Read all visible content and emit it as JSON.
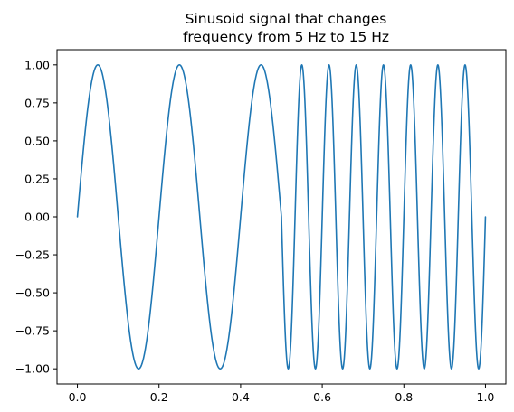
{
  "chart_data": {
    "type": "line",
    "title_lines": [
      "Sinusoid signal that changes",
      "frequency from 5 Hz to 15 Hz"
    ],
    "xlabel": "",
    "ylabel": "",
    "xlim": [
      -0.05,
      1.05
    ],
    "ylim": [
      -1.1,
      1.1
    ],
    "x_ticks": [
      0.0,
      0.2,
      0.4,
      0.6,
      0.8,
      1.0
    ],
    "x_tick_labels": [
      "0.0",
      "0.2",
      "0.4",
      "0.6",
      "0.8",
      "1.0"
    ],
    "y_ticks": [
      1.0,
      0.75,
      0.5,
      0.25,
      0.0,
      -0.25,
      -0.5,
      -0.75,
      -1.0
    ],
    "y_tick_labels": [
      "1.00",
      "0.75",
      "0.50",
      "0.25",
      "0.00",
      "−0.25",
      "−0.50",
      "−0.75",
      "−1.00"
    ],
    "grid": false,
    "series": [
      {
        "color": "#1f77b4",
        "segments": [
          {
            "x_start": 0.0,
            "x_end": 0.5,
            "frequency_hz": 5
          },
          {
            "x_start": 0.5,
            "x_end": 1.0,
            "frequency_hz": 15
          }
        ]
      }
    ]
  }
}
